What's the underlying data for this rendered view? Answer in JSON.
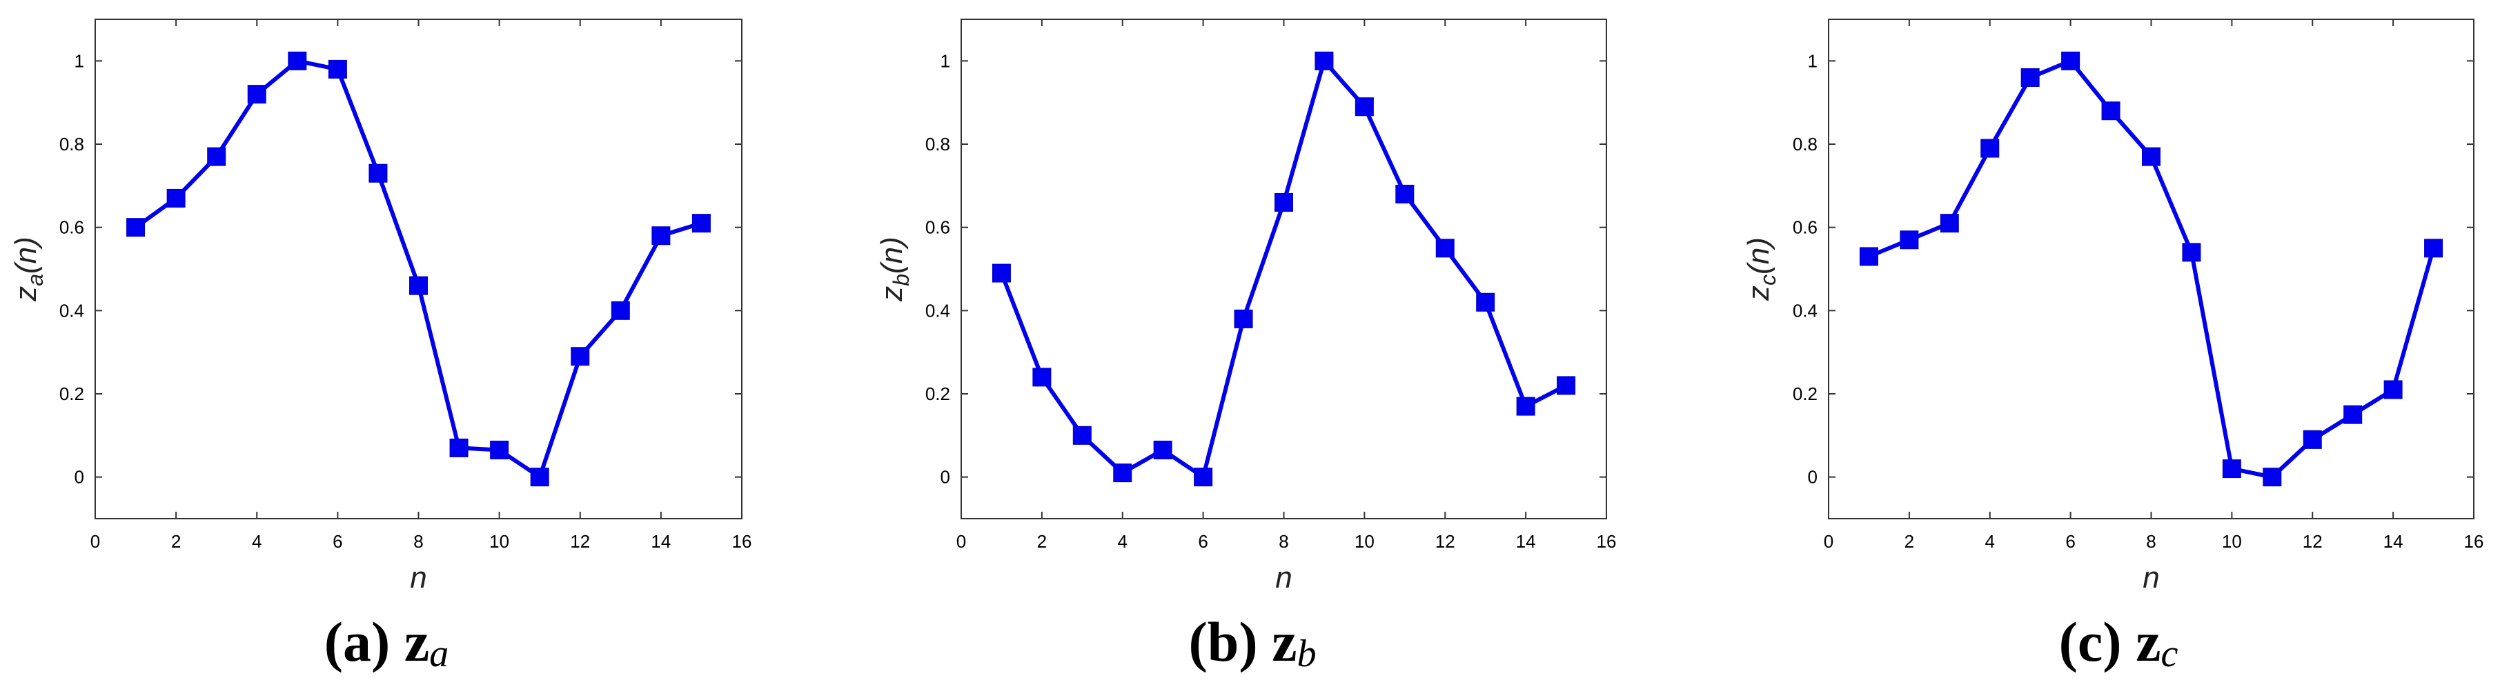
{
  "chart_data": [
    {
      "type": "line",
      "caption": {
        "letter": "(a)",
        "symbol": "z",
        "subscript": "a"
      },
      "xlabel": "n",
      "ylabel": {
        "base": "z",
        "sub": "a",
        "arg": "(n)"
      },
      "xlim": [
        0,
        16
      ],
      "ylim": [
        -0.1,
        1.1
      ],
      "xticks": [
        "0",
        "2",
        "4",
        "6",
        "8",
        "10",
        "12",
        "14",
        "16"
      ],
      "yticks": [
        "0",
        "0.2",
        "0.4",
        "0.6",
        "0.8",
        "1"
      ],
      "marker": "square",
      "color": "#0000ee",
      "x": [
        1,
        2,
        3,
        4,
        5,
        6,
        7,
        8,
        9,
        10,
        11,
        12,
        13,
        14,
        15
      ],
      "values": [
        0.6,
        0.67,
        0.77,
        0.92,
        1.0,
        0.98,
        0.73,
        0.46,
        0.07,
        0.065,
        0.0,
        0.29,
        0.4,
        0.58,
        0.61
      ]
    },
    {
      "type": "line",
      "caption": {
        "letter": "(b)",
        "symbol": "z",
        "subscript": "b"
      },
      "xlabel": "n",
      "ylabel": {
        "base": "z",
        "sub": "b",
        "arg": "(n)"
      },
      "xlim": [
        0,
        16
      ],
      "ylim": [
        -0.1,
        1.1
      ],
      "xticks": [
        "0",
        "2",
        "4",
        "6",
        "8",
        "10",
        "12",
        "14",
        "16"
      ],
      "yticks": [
        "0",
        "0.2",
        "0.4",
        "0.6",
        "0.8",
        "1"
      ],
      "marker": "square",
      "color": "#0000ee",
      "x": [
        1,
        2,
        3,
        4,
        5,
        6,
        7,
        8,
        9,
        10,
        11,
        12,
        13,
        14,
        15
      ],
      "values": [
        0.49,
        0.24,
        0.1,
        0.01,
        0.065,
        0.0,
        0.38,
        0.66,
        1.0,
        0.89,
        0.68,
        0.55,
        0.42,
        0.17,
        0.22
      ]
    },
    {
      "type": "line",
      "caption": {
        "letter": "(c)",
        "symbol": "z",
        "subscript": "c"
      },
      "xlabel": "n",
      "ylabel": {
        "base": "z",
        "sub": "c",
        "arg": "(n)"
      },
      "xlim": [
        0,
        16
      ],
      "ylim": [
        -0.1,
        1.1
      ],
      "xticks": [
        "0",
        "2",
        "4",
        "6",
        "8",
        "10",
        "12",
        "14",
        "16"
      ],
      "yticks": [
        "0",
        "0.2",
        "0.4",
        "0.6",
        "0.8",
        "1"
      ],
      "marker": "square",
      "color": "#0000ee",
      "x": [
        1,
        2,
        3,
        4,
        5,
        6,
        7,
        8,
        9,
        10,
        11,
        12,
        13,
        14,
        15
      ],
      "values": [
        0.53,
        0.57,
        0.61,
        0.79,
        0.96,
        1.0,
        0.88,
        0.77,
        0.54,
        0.02,
        0.0,
        0.09,
        0.15,
        0.21,
        0.55
      ]
    }
  ]
}
